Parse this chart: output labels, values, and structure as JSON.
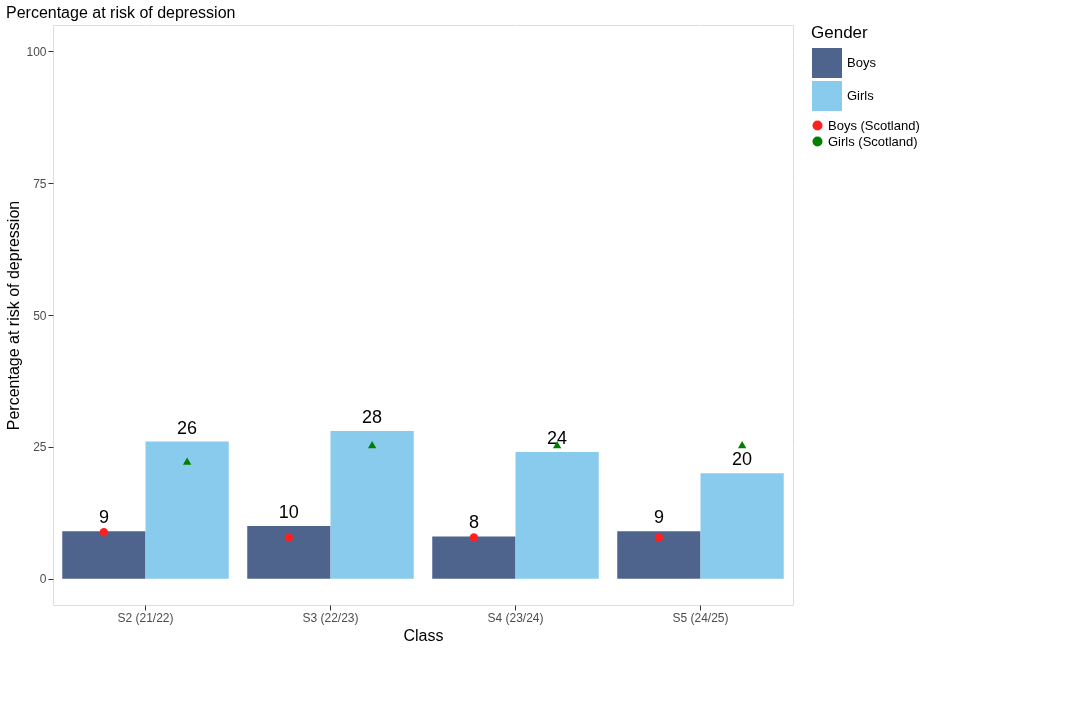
{
  "chart_data": {
    "type": "bar",
    "title": "Percentage at risk of depression",
    "xlabel": "Class",
    "ylabel": "Percentage at risk of depression",
    "legend_title": "Gender",
    "categories": [
      "S2 (21/22)",
      "S3 (22/23)",
      "S4 (23/24)",
      "S5 (24/25)"
    ],
    "series": [
      {
        "name": "Boys",
        "color": "#4e648c",
        "values": [
          9,
          10,
          8,
          9
        ],
        "value_labels": [
          "9",
          "10",
          "8",
          "9"
        ]
      },
      {
        "name": "Girls",
        "color": "#89cbed",
        "values": [
          26,
          28,
          24,
          20
        ],
        "value_labels": [
          "26",
          "28",
          "24",
          "20"
        ]
      },
      {
        "name": "Boys (Scotland)",
        "type": "scatter",
        "marker": "circle",
        "color": "#ff2020",
        "values": [
          8.8,
          7.8,
          7.8,
          7.8
        ]
      },
      {
        "name": "Girls (Scotland)",
        "type": "scatter",
        "marker": "triangle",
        "color": "#008000",
        "values": [
          22.3,
          25.4,
          25.4,
          25.4
        ]
      }
    ],
    "ylim": [
      -5,
      105
    ],
    "yticks": [
      0,
      25,
      50,
      75,
      100
    ],
    "grid": true,
    "legend": "right"
  }
}
